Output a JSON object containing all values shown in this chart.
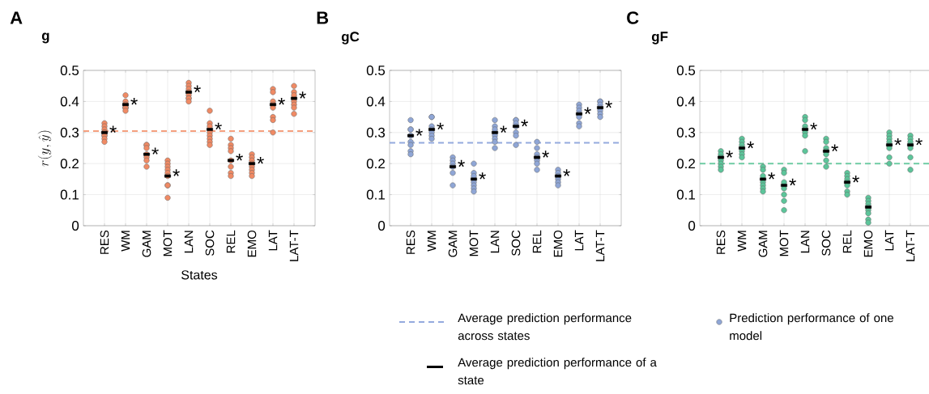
{
  "chart_data": [
    {
      "type": "scatter",
      "title": "A",
      "subtitle": "g",
      "xlabel": "States",
      "ylabel": "r(y,\\hat{y})",
      "grid": true,
      "categories": [
        "RES",
        "WM",
        "GAM",
        "MOT",
        "LAN",
        "SOC",
        "REL",
        "EMO",
        "LAT",
        "LAT-T"
      ],
      "ylim": [
        0,
        0.5
      ],
      "yticks": [
        0,
        0.1,
        0.2,
        0.3,
        0.4,
        0.5
      ],
      "ref_lines": [
        {
          "axis": "y",
          "value": 0.305,
          "color": "#f5a07f",
          "line_style": "dashed"
        }
      ],
      "series": [
        {
          "marker": "circle",
          "color": "#f08a64",
          "x": [
            "RES",
            "RES",
            "RES",
            "RES",
            "RES",
            "RES",
            "RES",
            "RES",
            "RES",
            "WM",
            "WM",
            "WM",
            "WM",
            "WM",
            "WM",
            "WM",
            "WM",
            "GAM",
            "GAM",
            "GAM",
            "GAM",
            "GAM",
            "GAM",
            "GAM",
            "MOT",
            "MOT",
            "MOT",
            "MOT",
            "MOT",
            "MOT",
            "MOT",
            "MOT",
            "MOT",
            "LAN",
            "LAN",
            "LAN",
            "LAN",
            "LAN",
            "LAN",
            "LAN",
            "LAN",
            "SOC",
            "SOC",
            "SOC",
            "SOC",
            "SOC",
            "SOC",
            "SOC",
            "SOC",
            "REL",
            "REL",
            "REL",
            "REL",
            "REL",
            "REL",
            "REL",
            "REL",
            "EMO",
            "EMO",
            "EMO",
            "EMO",
            "EMO",
            "EMO",
            "EMO",
            "EMO",
            "LAT",
            "LAT",
            "LAT",
            "LAT",
            "LAT",
            "LAT",
            "LAT",
            "LAT",
            "LAT-T",
            "LAT-T",
            "LAT-T",
            "LAT-T",
            "LAT-T",
            "LAT-T",
            "LAT-T"
          ],
          "values": [
            0.33,
            0.32,
            0.31,
            0.3,
            0.3,
            0.29,
            0.29,
            0.28,
            0.27,
            0.42,
            0.4,
            0.39,
            0.39,
            0.38,
            0.38,
            0.38,
            0.37,
            0.26,
            0.26,
            0.25,
            0.23,
            0.22,
            0.21,
            0.19,
            0.21,
            0.2,
            0.19,
            0.18,
            0.17,
            0.16,
            0.13,
            0.13,
            0.09,
            0.46,
            0.45,
            0.44,
            0.43,
            0.42,
            0.41,
            0.41,
            0.4,
            0.37,
            0.33,
            0.32,
            0.3,
            0.29,
            0.28,
            0.27,
            0.26,
            0.28,
            0.26,
            0.25,
            0.24,
            0.21,
            0.19,
            0.17,
            0.16,
            0.23,
            0.22,
            0.21,
            0.2,
            0.19,
            0.18,
            0.17,
            0.16,
            0.44,
            0.43,
            0.4,
            0.39,
            0.38,
            0.35,
            0.34,
            0.3,
            0.45,
            0.43,
            0.42,
            0.4,
            0.39,
            0.38,
            0.36
          ]
        },
        {
          "marker": "square",
          "color": "#000000",
          "x": [
            "RES",
            "WM",
            "GAM",
            "MOT",
            "LAN",
            "SOC",
            "REL",
            "EMO",
            "LAT",
            "LAT-T"
          ],
          "values": [
            0.3,
            0.39,
            0.23,
            0.16,
            0.43,
            0.31,
            0.21,
            0.2,
            0.39,
            0.41
          ]
        }
      ],
      "annotations": [
        {
          "text": "*",
          "x": "RES",
          "y": 0.3
        },
        {
          "text": "*",
          "x": "WM",
          "y": 0.39
        },
        {
          "text": "*",
          "x": "GAM",
          "y": 0.23
        },
        {
          "text": "*",
          "x": "MOT",
          "y": 0.16
        },
        {
          "text": "*",
          "x": "LAN",
          "y": 0.43
        },
        {
          "text": "*",
          "x": "SOC",
          "y": 0.31
        },
        {
          "text": "*",
          "x": "REL",
          "y": 0.21
        },
        {
          "text": "*",
          "x": "EMO",
          "y": 0.2
        },
        {
          "text": "*",
          "x": "LAT",
          "y": 0.39
        },
        {
          "text": "*",
          "x": "LAT-T",
          "y": 0.41
        }
      ]
    },
    {
      "type": "scatter",
      "title": "B",
      "subtitle": "gC",
      "grid": true,
      "legend": "bottom",
      "categories": [
        "RES",
        "WM",
        "GAM",
        "MOT",
        "LAN",
        "SOC",
        "REL",
        "EMO",
        "LAT",
        "LAT-T"
      ],
      "ylim": [
        0,
        0.5
      ],
      "yticks": [
        0,
        0.1,
        0.2,
        0.3,
        0.4,
        0.5
      ],
      "ref_lines": [
        {
          "axis": "y",
          "value": 0.267,
          "color": "#94aade",
          "line_style": "dashed",
          "label": "Average prediction performance across states"
        }
      ],
      "series": [
        {
          "name": "Prediction performance of one model",
          "marker": "circle",
          "color": "#8fa6d6",
          "x": [
            "RES",
            "RES",
            "RES",
            "RES",
            "RES",
            "RES",
            "RES",
            "RES",
            "WM",
            "WM",
            "WM",
            "WM",
            "WM",
            "WM",
            "WM",
            "GAM",
            "GAM",
            "GAM",
            "GAM",
            "GAM",
            "GAM",
            "MOT",
            "MOT",
            "MOT",
            "MOT",
            "MOT",
            "MOT",
            "MOT",
            "LAN",
            "LAN",
            "LAN",
            "LAN",
            "LAN",
            "LAN",
            "LAN",
            "SOC",
            "SOC",
            "SOC",
            "SOC",
            "SOC",
            "SOC",
            "SOC",
            "REL",
            "REL",
            "REL",
            "REL",
            "REL",
            "REL",
            "REL",
            "EMO",
            "EMO",
            "EMO",
            "EMO",
            "EMO",
            "EMO",
            "LAT",
            "LAT",
            "LAT",
            "LAT",
            "LAT",
            "LAT",
            "LAT",
            "LAT-T",
            "LAT-T",
            "LAT-T",
            "LAT-T",
            "LAT-T",
            "LAT-T",
            "LAT-T"
          ],
          "values": [
            0.34,
            0.31,
            0.31,
            0.29,
            0.27,
            0.26,
            0.24,
            0.23,
            0.35,
            0.35,
            0.32,
            0.31,
            0.3,
            0.29,
            0.28,
            0.22,
            0.21,
            0.2,
            0.19,
            0.17,
            0.13,
            0.2,
            0.17,
            0.16,
            0.14,
            0.13,
            0.12,
            0.11,
            0.34,
            0.32,
            0.31,
            0.29,
            0.28,
            0.27,
            0.25,
            0.34,
            0.34,
            0.33,
            0.32,
            0.3,
            0.29,
            0.26,
            0.27,
            0.25,
            0.23,
            0.22,
            0.21,
            0.2,
            0.18,
            0.18,
            0.17,
            0.16,
            0.15,
            0.14,
            0.13,
            0.39,
            0.38,
            0.37,
            0.36,
            0.35,
            0.33,
            0.32,
            0.4,
            0.4,
            0.39,
            0.38,
            0.37,
            0.36,
            0.35
          ]
        },
        {
          "name": "Average prediction performance of a state",
          "marker": "square",
          "color": "#000000",
          "x": [
            "RES",
            "WM",
            "GAM",
            "MOT",
            "LAN",
            "SOC",
            "REL",
            "EMO",
            "LAT",
            "LAT-T"
          ],
          "values": [
            0.29,
            0.31,
            0.19,
            0.15,
            0.3,
            0.32,
            0.22,
            0.16,
            0.36,
            0.38
          ]
        }
      ],
      "annotations": [
        {
          "text": "*",
          "x": "RES",
          "y": 0.29
        },
        {
          "text": "*",
          "x": "WM",
          "y": 0.31
        },
        {
          "text": "*",
          "x": "GAM",
          "y": 0.19
        },
        {
          "text": "*",
          "x": "MOT",
          "y": 0.15
        },
        {
          "text": "*",
          "x": "LAN",
          "y": 0.3
        },
        {
          "text": "*",
          "x": "SOC",
          "y": 0.32
        },
        {
          "text": "*",
          "x": "REL",
          "y": 0.22
        },
        {
          "text": "*",
          "x": "EMO",
          "y": 0.16
        },
        {
          "text": "*",
          "x": "LAT",
          "y": 0.36
        },
        {
          "text": "*",
          "x": "LAT-T",
          "y": 0.38
        }
      ]
    },
    {
      "type": "scatter",
      "title": "C",
      "subtitle": "gF",
      "grid": true,
      "categories": [
        "RES",
        "WM",
        "GAM",
        "MOT",
        "LAN",
        "SOC",
        "REL",
        "EMO",
        "LAT",
        "LAT-T"
      ],
      "ylim": [
        0,
        0.5
      ],
      "yticks": [
        0,
        0.1,
        0.2,
        0.3,
        0.4,
        0.5
      ],
      "ref_lines": [
        {
          "axis": "y",
          "value": 0.2,
          "color": "#6dcba2",
          "line_style": "dashed"
        }
      ],
      "series": [
        {
          "marker": "circle",
          "color": "#5cc59a",
          "x": [
            "RES",
            "RES",
            "RES",
            "RES",
            "RES",
            "RES",
            "RES",
            "WM",
            "WM",
            "WM",
            "WM",
            "WM",
            "WM",
            "WM",
            "GAM",
            "GAM",
            "GAM",
            "GAM",
            "GAM",
            "GAM",
            "GAM",
            "MOT",
            "MOT",
            "MOT",
            "MOT",
            "MOT",
            "MOT",
            "MOT",
            "LAN",
            "LAN",
            "LAN",
            "LAN",
            "LAN",
            "LAN",
            "LAN",
            "SOC",
            "SOC",
            "SOC",
            "SOC",
            "SOC",
            "SOC",
            "SOC",
            "REL",
            "REL",
            "REL",
            "REL",
            "REL",
            "REL",
            "REL",
            "EMO",
            "EMO",
            "EMO",
            "EMO",
            "EMO",
            "EMO",
            "EMO",
            "EMO",
            "LAT",
            "LAT",
            "LAT",
            "LAT",
            "LAT",
            "LAT",
            "LAT",
            "LAT",
            "LAT-T",
            "LAT-T",
            "LAT-T",
            "LAT-T",
            "LAT-T",
            "LAT-T",
            "LAT-T"
          ],
          "values": [
            0.24,
            0.23,
            0.22,
            0.21,
            0.2,
            0.19,
            0.18,
            0.28,
            0.27,
            0.26,
            0.25,
            0.24,
            0.23,
            0.22,
            0.19,
            0.18,
            0.16,
            0.14,
            0.13,
            0.12,
            0.11,
            0.18,
            0.17,
            0.14,
            0.12,
            0.1,
            0.08,
            0.05,
            0.35,
            0.34,
            0.32,
            0.31,
            0.3,
            0.29,
            0.24,
            0.28,
            0.27,
            0.25,
            0.24,
            0.23,
            0.21,
            0.19,
            0.17,
            0.16,
            0.15,
            0.14,
            0.13,
            0.11,
            0.1,
            0.09,
            0.08,
            0.07,
            0.06,
            0.05,
            0.04,
            0.02,
            0.01,
            0.3,
            0.29,
            0.28,
            0.27,
            0.26,
            0.25,
            0.22,
            0.2,
            0.29,
            0.28,
            0.27,
            0.26,
            0.25,
            0.22,
            0.18
          ]
        },
        {
          "marker": "square",
          "color": "#000000",
          "x": [
            "RES",
            "WM",
            "GAM",
            "MOT",
            "LAN",
            "SOC",
            "REL",
            "EMO",
            "LAT",
            "LAT-T"
          ],
          "values": [
            0.22,
            0.25,
            0.15,
            0.13,
            0.31,
            0.24,
            0.14,
            0.06,
            0.26,
            0.26
          ]
        }
      ],
      "annotations": [
        {
          "text": "*",
          "x": "RES",
          "y": 0.22
        },
        {
          "text": "*",
          "x": "WM",
          "y": 0.25
        },
        {
          "text": "*",
          "x": "GAM",
          "y": 0.15
        },
        {
          "text": "*",
          "x": "MOT",
          "y": 0.13
        },
        {
          "text": "*",
          "x": "LAN",
          "y": 0.31
        },
        {
          "text": "*",
          "x": "SOC",
          "y": 0.24
        },
        {
          "text": "*",
          "x": "REL",
          "y": 0.14
        },
        {
          "text": "*",
          "x": "LAT",
          "y": 0.26
        },
        {
          "text": "*",
          "x": "LAT-T",
          "y": 0.26
        }
      ]
    }
  ]
}
